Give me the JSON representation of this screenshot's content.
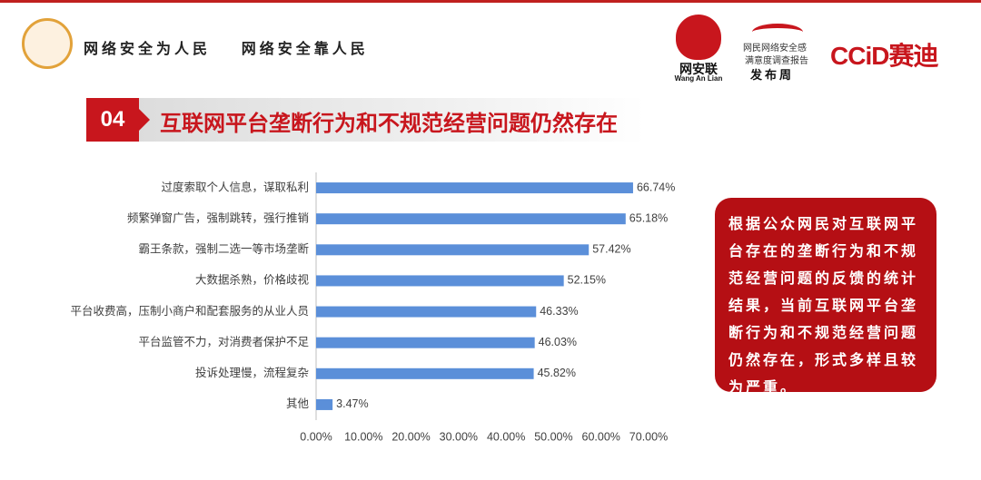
{
  "header": {
    "slogan": "网络安全为人民    网络安全靠人民",
    "logo_wal": "网安联",
    "logo_wal_en": "Wang An Lian",
    "report_line1": "网民网络安全感",
    "report_line2": "满意度调查报告",
    "report_line3": "发布周",
    "ccid": "CCiD赛迪"
  },
  "section": {
    "number": "04",
    "title": "互联网平台垄断行为和不规范经营问题仍然存在"
  },
  "note": "根据公众网民对互联网平台存在的垄断行为和不规范经营问题的反馈的统计结果，当前互联网平台垄断行为和不规范经营问题仍然存在，形式多样且较为严重。",
  "chart_data": {
    "type": "hbar",
    "categories": [
      "过度索取个人信息，谋取私利",
      "频繁弹窗广告，强制跳转，强行推销",
      "霸王条款，强制二选一等市场垄断",
      "大数据杀熟，价格歧视",
      "平台收费高，压制小商户和配套服务的从业人员",
      "平台监管不力，对消费者保护不足",
      "投诉处理慢，流程复杂",
      "其他"
    ],
    "values": [
      66.74,
      65.18,
      57.42,
      52.15,
      46.33,
      46.03,
      45.82,
      3.47
    ],
    "value_labels": [
      "66.74%",
      "65.18%",
      "57.42%",
      "52.15%",
      "46.33%",
      "46.03%",
      "45.82%",
      "3.47%"
    ],
    "color": "#5b8fd9",
    "xlim": [
      0,
      70
    ],
    "xticks": [
      {
        "value": 0,
        "label": "0.00%"
      },
      {
        "value": 10,
        "label": "10.00%"
      },
      {
        "value": 20,
        "label": "20.00%"
      },
      {
        "value": 30,
        "label": "30.00%"
      },
      {
        "value": 40,
        "label": "40.00%"
      },
      {
        "value": 50,
        "label": "50.00%"
      },
      {
        "value": 60,
        "label": "60.00%"
      },
      {
        "value": 70,
        "label": "70.00%"
      }
    ]
  }
}
